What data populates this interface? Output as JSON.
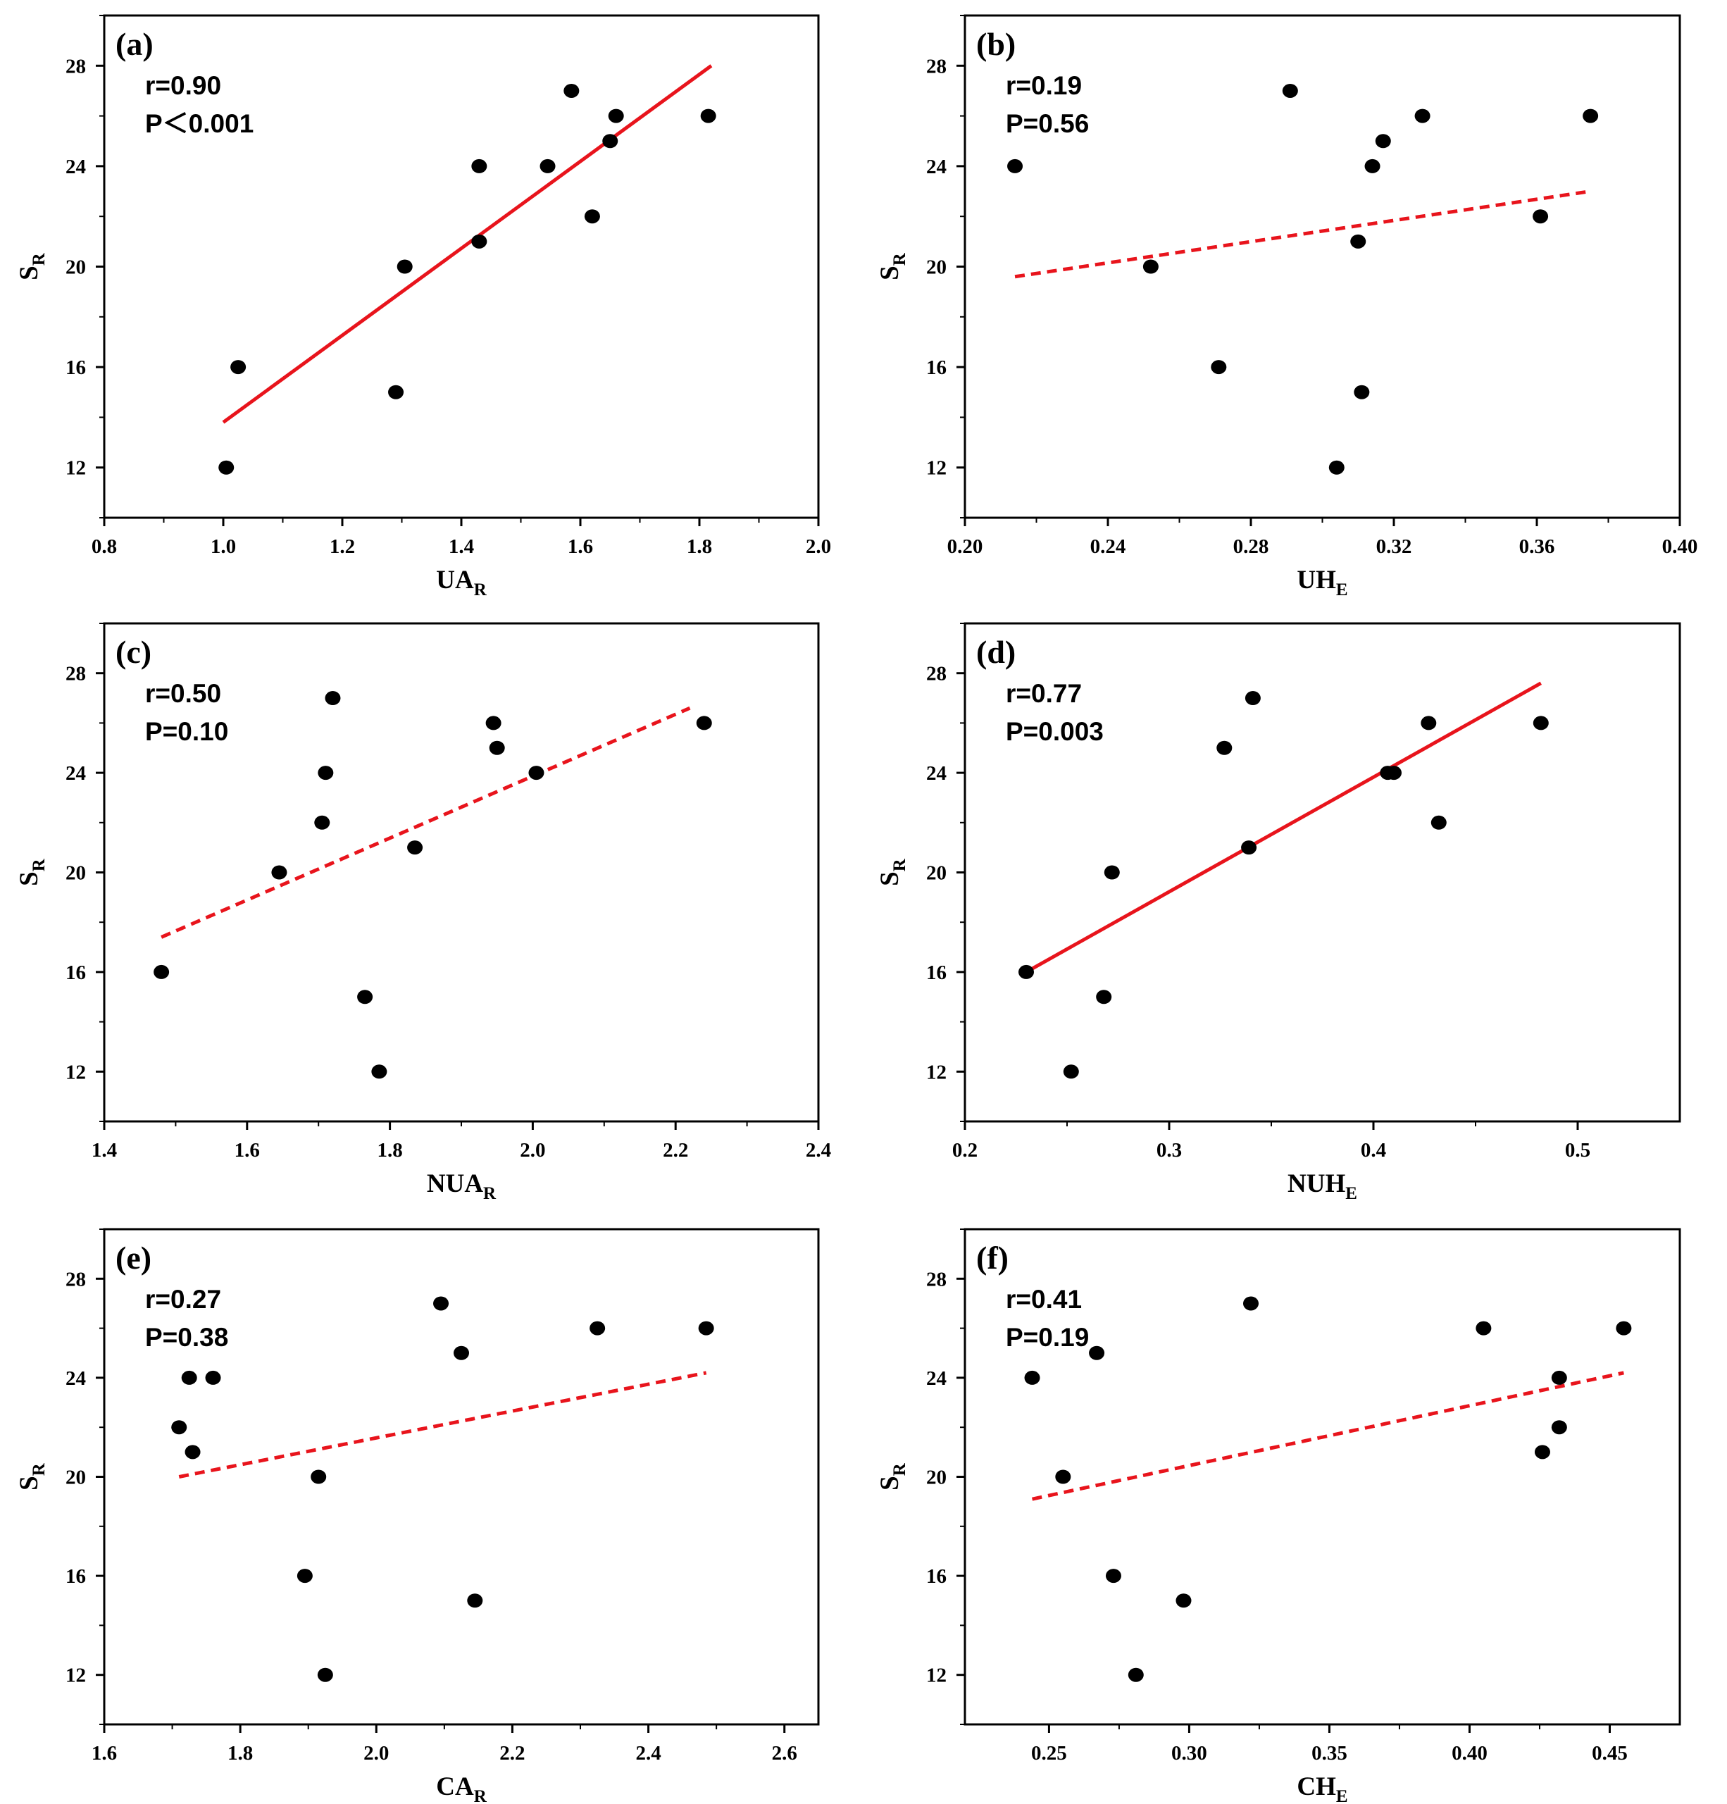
{
  "chart_data": [
    {
      "type": "scatter",
      "label": "(a)",
      "xlabel": {
        "main": "UA",
        "sub": "R"
      },
      "ylabel": {
        "main": "S",
        "sub": "R"
      },
      "xlim": [
        0.8,
        2.0
      ],
      "xticks": [
        0.8,
        1.0,
        1.2,
        1.4,
        1.6,
        1.8,
        2.0
      ],
      "xtick_labels": [
        "0.8",
        "1.0",
        "1.2",
        "1.4",
        "1.6",
        "1.8",
        "2.0"
      ],
      "ylim": [
        10,
        30
      ],
      "yticks": [
        12,
        16,
        20,
        24,
        28
      ],
      "ytick_labels": [
        "12",
        "16",
        "20",
        "24",
        "28"
      ],
      "r_text": "r=0.90",
      "p_text": "P＜0.001",
      "points": [
        [
          1.005,
          12
        ],
        [
          1.025,
          16
        ],
        [
          1.29,
          15
        ],
        [
          1.305,
          20
        ],
        [
          1.43,
          21
        ],
        [
          1.43,
          24
        ],
        [
          1.545,
          24
        ],
        [
          1.585,
          27
        ],
        [
          1.62,
          22
        ],
        [
          1.65,
          25
        ],
        [
          1.66,
          26
        ],
        [
          1.815,
          26
        ]
      ],
      "fit_line": {
        "x": [
          1.0,
          1.82
        ],
        "y": [
          13.8,
          28.0
        ],
        "style": "solid"
      }
    },
    {
      "type": "scatter",
      "label": "(b)",
      "xlabel": {
        "main": "UH",
        "sub": "E"
      },
      "ylabel": {
        "main": "S",
        "sub": "R"
      },
      "xlim": [
        0.2,
        0.4
      ],
      "xticks": [
        0.2,
        0.24,
        0.28,
        0.32,
        0.36,
        0.4
      ],
      "xtick_labels": [
        "0.20",
        "0.24",
        "0.28",
        "0.32",
        "0.36",
        "0.40"
      ],
      "ylim": [
        10,
        30
      ],
      "yticks": [
        12,
        16,
        20,
        24,
        28
      ],
      "ytick_labels": [
        "12",
        "16",
        "20",
        "24",
        "28"
      ],
      "r_text": "r=0.19",
      "p_text": "P=0.56",
      "points": [
        [
          0.214,
          24
        ],
        [
          0.252,
          20
        ],
        [
          0.271,
          16
        ],
        [
          0.291,
          27
        ],
        [
          0.304,
          12
        ],
        [
          0.31,
          21
        ],
        [
          0.311,
          15
        ],
        [
          0.314,
          24
        ],
        [
          0.317,
          25
        ],
        [
          0.328,
          26
        ],
        [
          0.361,
          22
        ],
        [
          0.375,
          26
        ]
      ],
      "fit_line": {
        "x": [
          0.214,
          0.375
        ],
        "y": [
          19.6,
          23.0
        ],
        "style": "dashed"
      }
    },
    {
      "type": "scatter",
      "label": "(c)",
      "xlabel": {
        "main": "NUA",
        "sub": "R"
      },
      "ylabel": {
        "main": "S",
        "sub": "R"
      },
      "xlim": [
        1.4,
        2.4
      ],
      "xticks": [
        1.4,
        1.6,
        1.8,
        2.0,
        2.2,
        2.4
      ],
      "xtick_labels": [
        "1.4",
        "1.6",
        "1.8",
        "2.0",
        "2.2",
        "2.4"
      ],
      "ylim": [
        10,
        30
      ],
      "yticks": [
        12,
        16,
        20,
        24,
        28
      ],
      "ytick_labels": [
        "12",
        "16",
        "20",
        "24",
        "28"
      ],
      "r_text": "r=0.50",
      "p_text": "P=0.10",
      "points": [
        [
          1.48,
          16
        ],
        [
          1.645,
          20
        ],
        [
          1.705,
          22
        ],
        [
          1.71,
          24
        ],
        [
          1.72,
          27
        ],
        [
          1.765,
          15
        ],
        [
          1.785,
          12
        ],
        [
          1.835,
          21
        ],
        [
          1.945,
          26
        ],
        [
          1.95,
          25
        ],
        [
          2.005,
          24
        ],
        [
          2.24,
          26
        ]
      ],
      "fit_line": {
        "x": [
          1.48,
          2.22
        ],
        "y": [
          17.4,
          26.6
        ],
        "style": "dashed"
      }
    },
    {
      "type": "scatter",
      "label": "(d)",
      "xlabel": {
        "main": "NUH",
        "sub": "E"
      },
      "ylabel": {
        "main": "S",
        "sub": "R"
      },
      "xlim": [
        0.2,
        0.55
      ],
      "xticks": [
        0.2,
        0.3,
        0.4,
        0.5
      ],
      "xtick_labels": [
        "0.2",
        "0.3",
        "0.4",
        "0.5"
      ],
      "ylim": [
        10,
        30
      ],
      "yticks": [
        12,
        16,
        20,
        24,
        28
      ],
      "ytick_labels": [
        "12",
        "16",
        "20",
        "24",
        "28"
      ],
      "r_text": "r=0.77",
      "p_text": "P=0.003",
      "points": [
        [
          0.23,
          16
        ],
        [
          0.252,
          12
        ],
        [
          0.268,
          15
        ],
        [
          0.272,
          20
        ],
        [
          0.327,
          25
        ],
        [
          0.339,
          21
        ],
        [
          0.341,
          27
        ],
        [
          0.407,
          24
        ],
        [
          0.41,
          24
        ],
        [
          0.427,
          26
        ],
        [
          0.432,
          22
        ],
        [
          0.482,
          26
        ]
      ],
      "fit_line": {
        "x": [
          0.23,
          0.482
        ],
        "y": [
          16.0,
          27.6
        ],
        "style": "solid"
      }
    },
    {
      "type": "scatter",
      "label": "(e)",
      "xlabel": {
        "main": "CA",
        "sub": "R"
      },
      "ylabel": {
        "main": "S",
        "sub": "R"
      },
      "xlim": [
        1.6,
        2.65
      ],
      "xticks": [
        1.6,
        1.8,
        2.0,
        2.2,
        2.4,
        2.6
      ],
      "xtick_labels": [
        "1.6",
        "1.8",
        "2.0",
        "2.2",
        "2.4",
        "2.6"
      ],
      "ylim": [
        10,
        30
      ],
      "yticks": [
        12,
        16,
        20,
        24,
        28
      ],
      "ytick_labels": [
        "12",
        "16",
        "20",
        "24",
        "28"
      ],
      "r_text": "r=0.27",
      "p_text": "P=0.38",
      "points": [
        [
          1.71,
          22
        ],
        [
          1.725,
          24
        ],
        [
          1.73,
          21
        ],
        [
          1.76,
          24
        ],
        [
          1.895,
          16
        ],
        [
          1.915,
          20
        ],
        [
          1.925,
          12
        ],
        [
          2.095,
          27
        ],
        [
          2.125,
          25
        ],
        [
          2.145,
          15
        ],
        [
          2.325,
          26
        ],
        [
          2.485,
          26
        ]
      ],
      "fit_line": {
        "x": [
          1.71,
          2.485
        ],
        "y": [
          20.0,
          24.2
        ],
        "style": "dashed"
      }
    },
    {
      "type": "scatter",
      "label": "(f)",
      "xlabel": {
        "main": "CH",
        "sub": "E"
      },
      "ylabel": {
        "main": "S",
        "sub": "R"
      },
      "xlim": [
        0.22,
        0.475
      ],
      "xticks": [
        0.25,
        0.3,
        0.35,
        0.4,
        0.45
      ],
      "xtick_labels": [
        "0.25",
        "0.30",
        "0.35",
        "0.40",
        "0.45"
      ],
      "ylim": [
        10,
        30
      ],
      "yticks": [
        12,
        16,
        20,
        24,
        28
      ],
      "ytick_labels": [
        "12",
        "16",
        "20",
        "24",
        "28"
      ],
      "r_text": "r=0.41",
      "p_text": "P=0.19",
      "points": [
        [
          0.244,
          24
        ],
        [
          0.255,
          20
        ],
        [
          0.267,
          25
        ],
        [
          0.273,
          16
        ],
        [
          0.281,
          12
        ],
        [
          0.298,
          15
        ],
        [
          0.322,
          27
        ],
        [
          0.405,
          26
        ],
        [
          0.426,
          21
        ],
        [
          0.432,
          22
        ],
        [
          0.432,
          24
        ],
        [
          0.455,
          26
        ]
      ],
      "fit_line": {
        "x": [
          0.244,
          0.455
        ],
        "y": [
          19.1,
          24.2
        ],
        "style": "dashed"
      }
    }
  ],
  "colors": {
    "points": "#000000",
    "fit_line": "#e8141c",
    "axis": "#000000"
  }
}
